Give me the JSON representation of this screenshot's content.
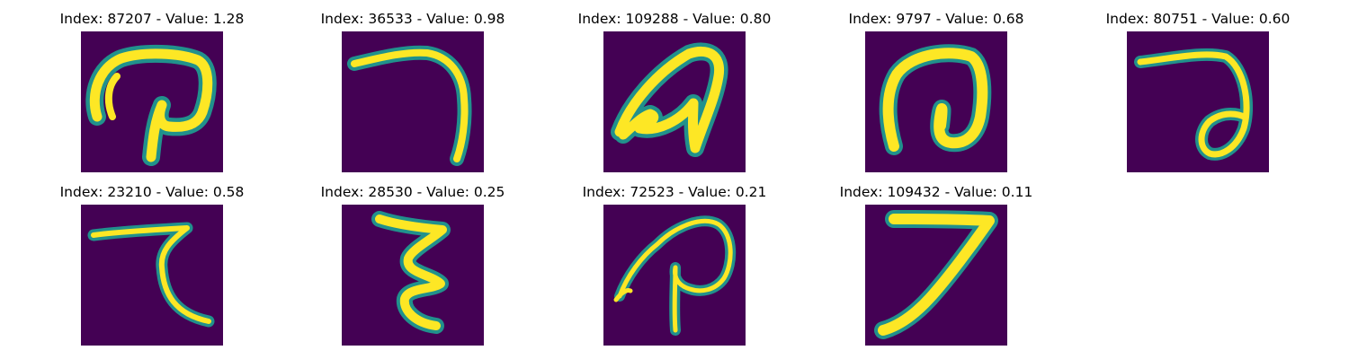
{
  "figure": {
    "panels": [
      {
        "title": "Index: 87207 - Value: 1.28",
        "image_icon": "handwritten-glyph-icon"
      },
      {
        "title": "Index: 36533 - Value: 0.98",
        "image_icon": "handwritten-glyph-icon"
      },
      {
        "title": "Index: 109288 - Value: 0.80",
        "image_icon": "handwritten-glyph-icon"
      },
      {
        "title": "Index: 9797 - Value: 0.68",
        "image_icon": "handwritten-glyph-icon"
      },
      {
        "title": "Index: 80751 - Value: 0.60",
        "image_icon": "handwritten-glyph-icon"
      },
      {
        "title": "Index: 23210 - Value: 0.58",
        "image_icon": "handwritten-glyph-icon"
      },
      {
        "title": "Index: 28530 - Value: 0.25",
        "image_icon": "handwritten-glyph-icon"
      },
      {
        "title": "Index: 72523 - Value: 0.21",
        "image_icon": "handwritten-glyph-icon"
      },
      {
        "title": "Index: 109432 - Value: 0.11",
        "image_icon": "handwritten-glyph-icon"
      }
    ]
  },
  "colors": {
    "background": "#440154",
    "stroke_outer": "#21918c",
    "stroke_inner": "#fde725"
  }
}
